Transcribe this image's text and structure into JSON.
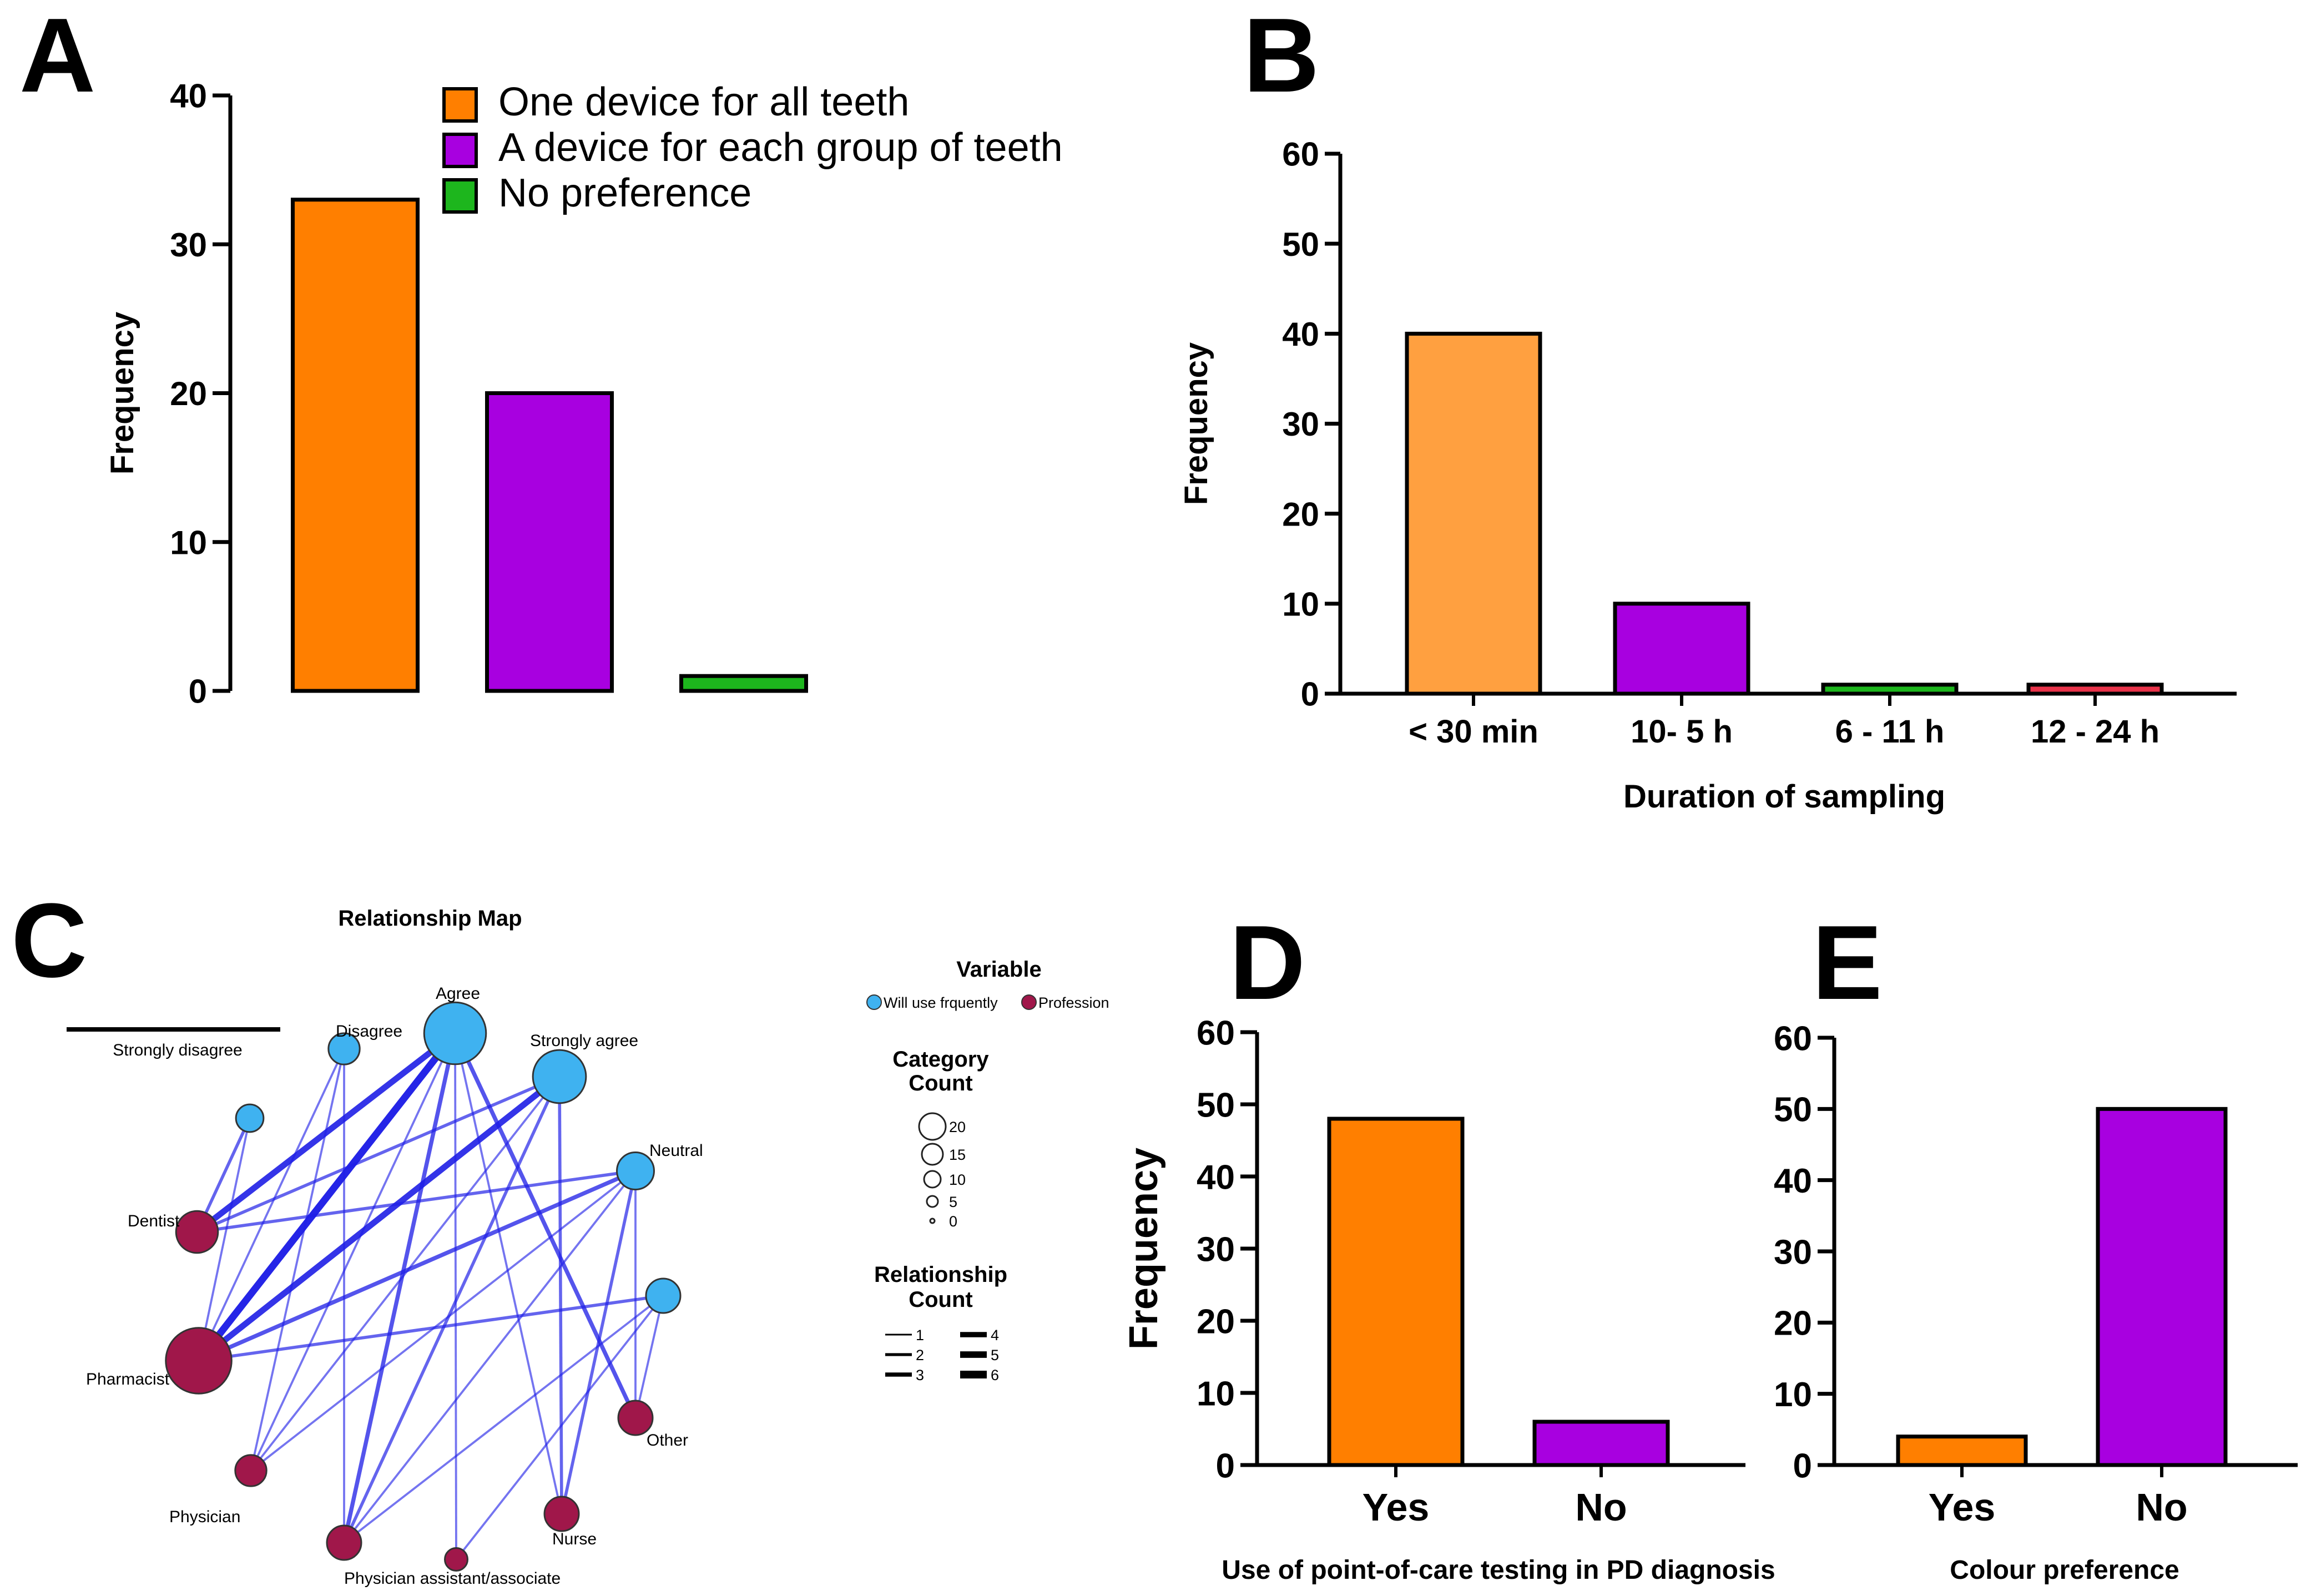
{
  "colors": {
    "orange": "#FF7F00",
    "light_orange": "#FFA040",
    "purple": "#A800E0",
    "green": "#1DB61D",
    "red": "#E8334A",
    "node_blue": "#3FB2F0",
    "node_maroon": "#A0174A",
    "edge_blue": "#1E1EE6"
  },
  "panels": {
    "A": {
      "letter": "A"
    },
    "B": {
      "letter": "B"
    },
    "C": {
      "letter": "C"
    },
    "D": {
      "letter": "D"
    },
    "E": {
      "letter": "E"
    }
  },
  "chart_data": [
    {
      "panel": "A",
      "type": "bar",
      "categories": [
        "One device for all teeth",
        "A device for each group of teeth",
        "No preference"
      ],
      "values": [
        33,
        20,
        1
      ],
      "colors": [
        "#FF7F00",
        "#A800E0",
        "#1DB61D"
      ],
      "ylabel": "Frequency",
      "xlabel": "",
      "ylim": [
        0,
        40
      ],
      "yticks": [
        0,
        10,
        20,
        30,
        40
      ],
      "legend": [
        "One device for all teeth",
        "A device for each group of teeth",
        "No preference"
      ],
      "legend_position": "top-right"
    },
    {
      "panel": "B",
      "type": "bar",
      "categories": [
        "< 30 min",
        "10- 5 h",
        "6 - 11 h",
        "12 - 24 h"
      ],
      "values": [
        40,
        10,
        1,
        1
      ],
      "colors": [
        "#FFA040",
        "#A800E0",
        "#1DB61D",
        "#E8334A"
      ],
      "ylabel": "Frequency",
      "xlabel": "Duration of sampling",
      "ylim": [
        0,
        60
      ],
      "yticks": [
        0,
        10,
        20,
        30,
        40,
        50,
        60
      ]
    },
    {
      "panel": "D",
      "type": "bar",
      "categories": [
        "Yes",
        "No"
      ],
      "values": [
        48,
        6
      ],
      "colors": [
        "#FF7F00",
        "#A800E0"
      ],
      "ylabel": "Frequency",
      "xlabel": "Use of point-of-care testing in PD diagnosis",
      "ylim": [
        0,
        60
      ],
      "yticks": [
        0,
        10,
        20,
        30,
        40,
        50,
        60
      ]
    },
    {
      "panel": "E",
      "type": "bar",
      "categories": [
        "Yes",
        "No"
      ],
      "values": [
        4,
        50
      ],
      "colors": [
        "#FF7F00",
        "#A800E0"
      ],
      "ylabel": "",
      "xlabel": "Colour preference",
      "ylim": [
        0,
        60
      ],
      "yticks": [
        0,
        10,
        20,
        30,
        40,
        50,
        60
      ]
    }
  ],
  "network": {
    "title": "Relationship Map",
    "nodes": [
      {
        "id": "strongly_disagree",
        "label": "Strongly disagree",
        "group": "will",
        "count": 0
      },
      {
        "id": "disagree",
        "label": "Disagree",
        "group": "will",
        "count": 3
      },
      {
        "id": "agree",
        "label": "Agree",
        "group": "will",
        "count": 19
      },
      {
        "id": "strongly_agree",
        "label": "Strongly agree",
        "group": "will",
        "count": 13
      },
      {
        "id": "neutral",
        "label": "Neutral",
        "group": "will",
        "count": 5
      },
      {
        "id": "unlabeled_a",
        "label": "",
        "group": "will",
        "count": 2
      },
      {
        "id": "unlabeled_b",
        "label": "",
        "group": "will",
        "count": 4
      },
      {
        "id": "dentist",
        "label": "Dentist",
        "group": "prof",
        "count": 7
      },
      {
        "id": "pharmacist",
        "label": "Pharmacist",
        "group": "prof",
        "count": 22
      },
      {
        "id": "physician",
        "label": "Physician",
        "group": "prof",
        "count": 3
      },
      {
        "id": "pa",
        "label": "Physician assistant/associate",
        "group": "prof",
        "count": 4
      },
      {
        "id": "pa_small",
        "label": "",
        "group": "prof",
        "count": 1
      },
      {
        "id": "nurse",
        "label": "Nurse",
        "group": "prof",
        "count": 4
      },
      {
        "id": "other",
        "label": "Other",
        "group": "prof",
        "count": 4
      }
    ],
    "edges": [
      {
        "from": "agree",
        "to": "dentist",
        "w": 5
      },
      {
        "from": "agree",
        "to": "pharmacist",
        "w": 6
      },
      {
        "from": "strongly_agree",
        "to": "pharmacist",
        "w": 5
      },
      {
        "from": "strongly_agree",
        "to": "dentist",
        "w": 2
      },
      {
        "from": "neutral",
        "to": "pharmacist",
        "w": 3
      },
      {
        "from": "neutral",
        "to": "dentist",
        "w": 2
      },
      {
        "from": "unlabeled_a",
        "to": "dentist",
        "w": 2
      },
      {
        "from": "unlabeled_a",
        "to": "pharmacist",
        "w": 1
      },
      {
        "from": "unlabeled_b",
        "to": "pharmacist",
        "w": 2
      },
      {
        "from": "agree",
        "to": "pa",
        "w": 3
      },
      {
        "from": "agree",
        "to": "other",
        "w": 3
      },
      {
        "from": "agree",
        "to": "nurse",
        "w": 1
      },
      {
        "from": "agree",
        "to": "physician",
        "w": 1
      },
      {
        "from": "strongly_agree",
        "to": "pa",
        "w": 2
      },
      {
        "from": "strongly_agree",
        "to": "physician",
        "w": 1
      },
      {
        "from": "strongly_agree",
        "to": "nurse",
        "w": 2
      },
      {
        "from": "disagree",
        "to": "pharmacist",
        "w": 1
      },
      {
        "from": "disagree",
        "to": "pa",
        "w": 1
      },
      {
        "from": "disagree",
        "to": "physician",
        "w": 1
      },
      {
        "from": "neutral",
        "to": "pa",
        "w": 1
      },
      {
        "from": "neutral",
        "to": "nurse",
        "w": 2
      },
      {
        "from": "neutral",
        "to": "other",
        "w": 1
      },
      {
        "from": "neutral",
        "to": "physician",
        "w": 1
      },
      {
        "from": "unlabeled_b",
        "to": "pa",
        "w": 1
      },
      {
        "from": "unlabeled_b",
        "to": "pa_small",
        "w": 1
      },
      {
        "from": "unlabeled_b",
        "to": "other",
        "w": 1
      },
      {
        "from": "agree",
        "to": "pa_small",
        "w": 1
      }
    ],
    "legend": {
      "variable_title": "Variable",
      "variable_items": [
        "Will use frquently",
        "Profession"
      ],
      "category_title": "Category\nCount",
      "category_title_lines": [
        "Category",
        "Count"
      ],
      "category_values": [
        "20",
        "15",
        "10",
        "5",
        "0"
      ],
      "relationship_title_lines": [
        "Relationship",
        "Count"
      ],
      "relationship_values": [
        "1",
        "2",
        "3",
        "4",
        "5",
        "6"
      ]
    }
  }
}
